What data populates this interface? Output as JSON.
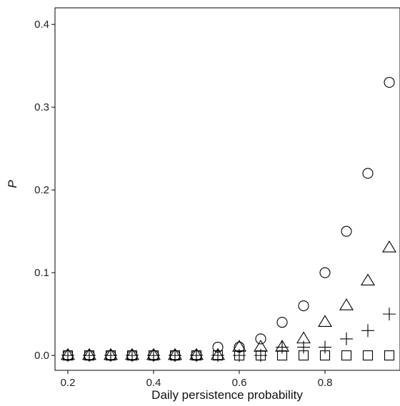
{
  "chart_data": {
    "type": "scatter",
    "title": "",
    "xlabel": "Daily persistence probability",
    "ylabel": "P",
    "xlim": [
      0.17,
      0.975
    ],
    "ylim": [
      -0.018,
      0.42
    ],
    "xticks": [
      0.2,
      0.4,
      0.6,
      0.8
    ],
    "xtick_labels": [
      "0.2",
      "0.4",
      "0.6",
      "0.8"
    ],
    "yticks": [
      0.0,
      0.1,
      0.2,
      0.3,
      0.4
    ],
    "ytick_labels": [
      "0.0",
      "0.1",
      "0.2",
      "0.3",
      "0.4"
    ],
    "grid": false,
    "legend": "none",
    "x": [
      0.2,
      0.25,
      0.3,
      0.35,
      0.4,
      0.45,
      0.5,
      0.55,
      0.6,
      0.65,
      0.7,
      0.75,
      0.8,
      0.85,
      0.9,
      0.95
    ],
    "series": [
      {
        "marker": "circle",
        "values": [
          0,
          0,
          0,
          0,
          0,
          0,
          0,
          0.01,
          0.01,
          0.02,
          0.04,
          0.06,
          0.1,
          0.15,
          0.22,
          0.33
        ]
      },
      {
        "marker": "triangle",
        "values": [
          0,
          0,
          0,
          0,
          0,
          0,
          0,
          0,
          0.01,
          0.01,
          0.01,
          0.02,
          0.04,
          0.06,
          0.09,
          0.13
        ]
      },
      {
        "marker": "plus",
        "values": [
          0,
          0,
          0,
          0,
          0,
          0,
          0,
          0,
          0,
          0,
          0.01,
          0.01,
          0.01,
          0.02,
          0.03,
          0.05
        ]
      },
      {
        "marker": "square",
        "values": [
          0,
          0,
          0,
          0,
          0,
          0,
          0,
          0,
          0,
          0,
          0,
          0,
          0,
          0,
          0,
          0
        ]
      }
    ]
  },
  "colors": {
    "marker": "#000000",
    "axis": "#000000",
    "text": "#222222"
  }
}
